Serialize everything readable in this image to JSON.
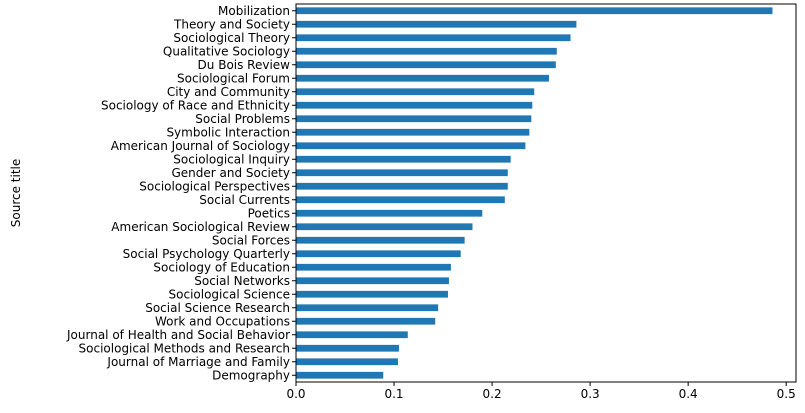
{
  "chart_data": {
    "type": "bar",
    "orientation": "horizontal",
    "title": "",
    "xlabel": "",
    "ylabel": "Source title",
    "xlim": [
      0,
      0.51
    ],
    "xticks": [
      "0.0",
      "0.1",
      "0.2",
      "0.3",
      "0.4",
      "0.5"
    ],
    "grid": false,
    "bar_color": "#1f77b4",
    "categories": [
      "Mobilization",
      "Theory and Society",
      "Sociological Theory",
      "Qualitative Sociology",
      "Du Bois Review",
      "Sociological Forum",
      "City and Community",
      "Sociology of Race and Ethnicity",
      "Social Problems",
      "Symbolic Interaction",
      "American Journal of Sociology",
      "Sociological Inquiry",
      "Gender and Society",
      "Sociological Perspectives",
      "Social Currents",
      "Poetics",
      "American Sociological Review",
      "Social Forces",
      "Social Psychology Quarterly",
      "Sociology of Education",
      "Social Networks",
      "Sociological Science",
      "Social Science Research",
      "Work and Occupations",
      "Journal of Health and Social Behavior",
      "Sociological Methods and Research",
      "Journal of Marriage and Family",
      "Demography"
    ],
    "values": [
      0.486,
      0.286,
      0.28,
      0.266,
      0.265,
      0.258,
      0.243,
      0.241,
      0.24,
      0.238,
      0.234,
      0.219,
      0.216,
      0.216,
      0.213,
      0.19,
      0.18,
      0.172,
      0.168,
      0.158,
      0.156,
      0.155,
      0.145,
      0.142,
      0.114,
      0.105,
      0.104,
      0.089
    ]
  }
}
